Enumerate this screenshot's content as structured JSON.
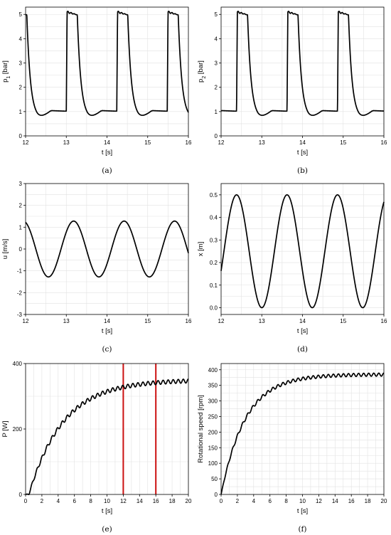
{
  "chart_data": [
    {
      "id": "a",
      "type": "line",
      "caption": "(a)",
      "xlabel": "t [s]",
      "ylabel_main": "p",
      "ylabel_sub": "1",
      "ylabel_unit": " [bar]",
      "xlim": [
        12,
        16
      ],
      "ylim": [
        0,
        5.3
      ],
      "xticks": [
        12,
        13,
        14,
        15,
        16
      ],
      "yticks": [
        0,
        1,
        2,
        3,
        4,
        5
      ],
      "series": [
        {
          "model": "pressure",
          "peaks": [
            13.0,
            14.24,
            15.48
          ]
        }
      ]
    },
    {
      "id": "b",
      "type": "line",
      "caption": "(b)",
      "xlabel": "t [s]",
      "ylabel_main": "p",
      "ylabel_sub": "2",
      "ylabel_unit": " [bar]",
      "xlim": [
        12,
        16
      ],
      "ylim": [
        0,
        5.3
      ],
      "xticks": [
        12,
        13,
        14,
        15,
        16
      ],
      "yticks": [
        0,
        1,
        2,
        3,
        4,
        5
      ],
      "series": [
        {
          "model": "pressure",
          "peaks": [
            12.38,
            13.62,
            14.86
          ]
        }
      ]
    },
    {
      "id": "c",
      "type": "line",
      "caption": "(c)",
      "xlabel": "t [s]",
      "ylabel": "u [m/s]",
      "xlim": [
        12,
        16
      ],
      "ylim": [
        -3,
        3
      ],
      "xticks": [
        12,
        13,
        14,
        15,
        16
      ],
      "yticks": [
        -3,
        -2,
        -1,
        0,
        1,
        2,
        3
      ],
      "series": [
        {
          "model": "sine",
          "amplitude": 1.28,
          "period": 1.24,
          "phase": 0.3,
          "offset": 0
        }
      ]
    },
    {
      "id": "d",
      "type": "line",
      "caption": "(d)",
      "xlabel": "t [s]",
      "ylabel": "x [m]",
      "xlim": [
        12,
        16
      ],
      "ylim": [
        -0.03,
        0.55
      ],
      "xticks": [
        12,
        13,
        14,
        15,
        16
      ],
      "yticks": [
        0.0,
        0.1,
        0.2,
        0.3,
        0.4,
        0.5
      ],
      "ytick_decimals": 1,
      "series": [
        {
          "model": "cosine",
          "amplitude": 0.25,
          "period": 1.24,
          "peak_at": 12.38,
          "offset": 0.25
        }
      ]
    },
    {
      "id": "e",
      "type": "line",
      "caption": "(e)",
      "xlabel": "t [s]",
      "ylabel": "P [W]",
      "xlim": [
        0,
        20
      ],
      "ylim": [
        0,
        400
      ],
      "xticks": [
        0,
        2,
        4,
        6,
        8,
        10,
        12,
        14,
        16,
        18,
        20
      ],
      "yticks": [
        0,
        200,
        400
      ],
      "series": [
        {
          "model": "rise",
          "final": 350,
          "tau": 4.2,
          "ripple": 6,
          "ripple_period": 0.62,
          "delay": 0.4
        }
      ],
      "vlines": [
        {
          "x": 12,
          "color": "#cc1111"
        },
        {
          "x": 16,
          "color": "#cc1111"
        }
      ]
    },
    {
      "id": "f",
      "type": "line",
      "caption": "(f)",
      "xlabel": "t [s]",
      "ylabel": "Rotational speed [rpm]",
      "xlim": [
        0,
        20
      ],
      "ylim": [
        0,
        420
      ],
      "xticks": [
        0,
        2,
        4,
        6,
        8,
        10,
        12,
        14,
        16,
        18,
        20
      ],
      "yticks": [
        0,
        50,
        100,
        150,
        200,
        250,
        300,
        350,
        400
      ],
      "series": [
        {
          "model": "rise",
          "final": 385,
          "tau": 3.0,
          "ripple": 5,
          "ripple_period": 0.62,
          "delay": 0.0
        }
      ]
    }
  ]
}
